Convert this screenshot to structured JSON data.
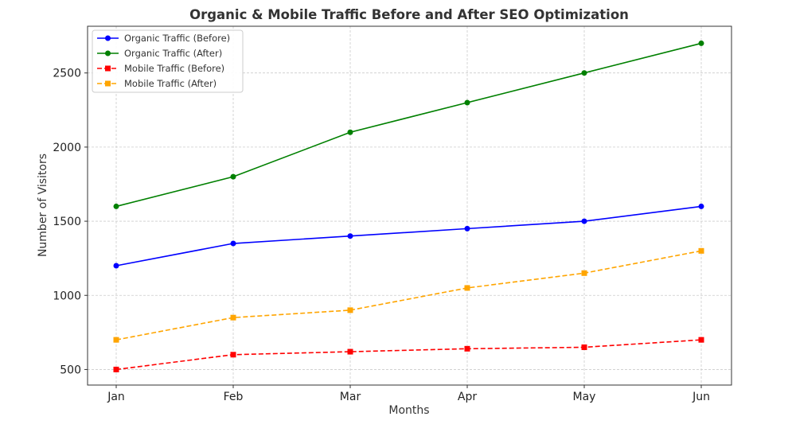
{
  "chart_data": {
    "type": "line",
    "title": "Organic & Mobile Traffic Before and After SEO Optimization",
    "xlabel": "Months",
    "ylabel": "Number of Visitors",
    "categories": [
      "Jan",
      "Feb",
      "Mar",
      "Apr",
      "May",
      "Jun"
    ],
    "ylim": [
      395,
      2815
    ],
    "yticks": [
      500,
      1000,
      1500,
      2000,
      2500
    ],
    "grid": true,
    "legend_position": "top-left",
    "series": [
      {
        "name": "Organic Traffic (Before)",
        "values": [
          1200,
          1350,
          1400,
          1450,
          1500,
          1600
        ],
        "color": "#0000ff",
        "line_style": "solid",
        "marker": "circle"
      },
      {
        "name": "Organic Traffic (After)",
        "values": [
          1600,
          1800,
          2100,
          2300,
          2500,
          2700
        ],
        "color": "#008000",
        "line_style": "solid",
        "marker": "circle"
      },
      {
        "name": "Mobile Traffic (Before)",
        "values": [
          500,
          600,
          620,
          640,
          650,
          700
        ],
        "color": "#ff0000",
        "line_style": "dashed",
        "marker": "square"
      },
      {
        "name": "Mobile Traffic (After)",
        "values": [
          700,
          850,
          900,
          1050,
          1150,
          1300
        ],
        "color": "#ffa500",
        "line_style": "dashed",
        "marker": "square"
      }
    ]
  }
}
